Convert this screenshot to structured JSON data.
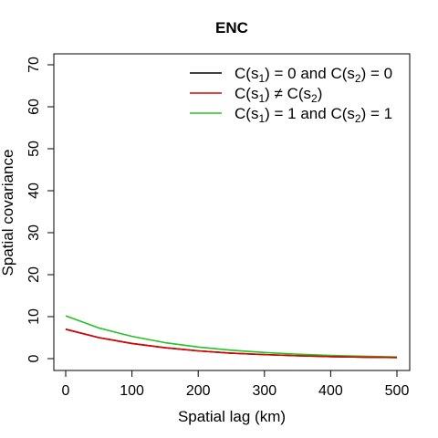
{
  "chart_data": {
    "type": "line",
    "title": "ENC",
    "xlabel": "Spatial lag (km)",
    "ylabel": "Spatial covariance",
    "xlim": [
      0,
      500
    ],
    "ylim": [
      0,
      70
    ],
    "xticks": [
      0,
      100,
      200,
      300,
      400,
      500
    ],
    "yticks": [
      0,
      10,
      20,
      30,
      40,
      50,
      60,
      70
    ],
    "grid": false,
    "legend_position": "top-right",
    "x": [
      0,
      50,
      100,
      150,
      200,
      250,
      300,
      350,
      400,
      450,
      500
    ],
    "series": [
      {
        "legend": [
          "C(s",
          "1",
          ") = 0 and C(s",
          "2",
          ") = 0"
        ],
        "color": "#000000",
        "values": [
          7.0,
          5.0,
          3.6,
          2.6,
          1.85,
          1.3,
          0.95,
          0.68,
          0.48,
          0.34,
          0.25
        ]
      },
      {
        "legend": [
          "C(s",
          "1",
          ") ≠ C(s",
          "2",
          ")"
        ],
        "color": "#DF0000",
        "values": [
          7.0,
          5.0,
          3.6,
          2.6,
          1.85,
          1.3,
          0.95,
          0.68,
          0.48,
          0.34,
          0.25
        ]
      },
      {
        "legend": [
          "C(s",
          "1",
          ") = 1 and C(s",
          "2",
          ") = 1"
        ],
        "color": "#22C322",
        "values": [
          10.2,
          7.3,
          5.3,
          3.8,
          2.75,
          2.0,
          1.45,
          1.05,
          0.75,
          0.55,
          0.4
        ]
      }
    ]
  }
}
